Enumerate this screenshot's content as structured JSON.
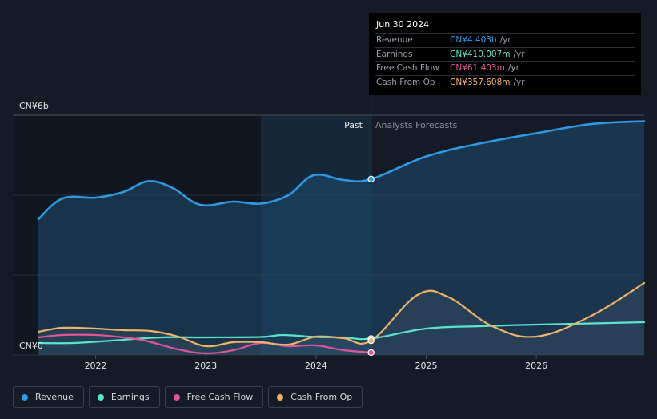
{
  "tooltip": {
    "date": "Jun 30 2024",
    "rows": [
      {
        "label": "Revenue",
        "value": "CN¥4.403b",
        "unit": "/yr",
        "color": "#2e9be6"
      },
      {
        "label": "Earnings",
        "value": "CN¥410.007m",
        "unit": "/yr",
        "color": "#5be3cc"
      },
      {
        "label": "Free Cash Flow",
        "value": "CN¥61.403m",
        "unit": "/yr",
        "color": "#e0559a"
      },
      {
        "label": "Cash From Op",
        "value": "CN¥357.608m",
        "unit": "/yr",
        "color": "#f0b36a"
      }
    ]
  },
  "legend": [
    {
      "label": "Revenue",
      "color": "#2e9be6"
    },
    {
      "label": "Earnings",
      "color": "#5be3cc"
    },
    {
      "label": "Free Cash Flow",
      "color": "#e0559a"
    },
    {
      "label": "Cash From Op",
      "color": "#f0b36a"
    }
  ],
  "chart_data": {
    "type": "line",
    "title": "",
    "ylabel": "",
    "y_top_label": "CN¥6b",
    "y_bottom_label": "CN¥0",
    "ylim": [
      0,
      6
    ],
    "xlim": [
      2021.48,
      2026.98
    ],
    "x_ticks": [
      {
        "value": 2022,
        "label": "2022"
      },
      {
        "value": 2023,
        "label": "2023"
      },
      {
        "value": 2024,
        "label": "2024"
      },
      {
        "value": 2025,
        "label": "2025"
      },
      {
        "value": 2026,
        "label": "2026"
      }
    ],
    "past_label": "Past",
    "forecast_label": "Analysts Forecasts",
    "past_end": 2024.5,
    "highlight_start": 2023.5,
    "marker_x": 2024.5,
    "series": [
      {
        "name": "Revenue",
        "color": "#2e9be6",
        "fill": true,
        "x": [
          2021.48,
          2021.7,
          2022.0,
          2022.25,
          2022.48,
          2022.7,
          2022.95,
          2023.25,
          2023.5,
          2023.75,
          2023.98,
          2024.25,
          2024.5,
          2025.0,
          2025.5,
          2026.0,
          2026.5,
          2026.98
        ],
        "y": [
          3.4,
          3.92,
          3.94,
          4.08,
          4.35,
          4.18,
          3.76,
          3.84,
          3.79,
          4.0,
          4.5,
          4.38,
          4.403,
          4.97,
          5.3,
          5.55,
          5.78,
          5.85
        ]
      },
      {
        "name": "Earnings",
        "color": "#5be3cc",
        "fill": false,
        "x": [
          2021.48,
          2021.8,
          2022.2,
          2022.6,
          2023.0,
          2023.5,
          2023.7,
          2024.0,
          2024.25,
          2024.5,
          2025.0,
          2025.5,
          2026.0,
          2026.5,
          2026.98
        ],
        "y": [
          0.3,
          0.3,
          0.37,
          0.44,
          0.44,
          0.45,
          0.5,
          0.45,
          0.44,
          0.41,
          0.66,
          0.72,
          0.76,
          0.79,
          0.82
        ]
      },
      {
        "name": "Free Cash Flow",
        "color": "#e0559a",
        "fill": false,
        "x": [
          2021.48,
          2021.7,
          2022.0,
          2022.25,
          2022.45,
          2022.75,
          2023.0,
          2023.25,
          2023.5,
          2023.75,
          2024.0,
          2024.25,
          2024.5
        ],
        "y": [
          0.44,
          0.5,
          0.5,
          0.44,
          0.36,
          0.14,
          0.04,
          0.12,
          0.3,
          0.22,
          0.24,
          0.12,
          0.061
        ]
      },
      {
        "name": "Cash From Op",
        "color": "#f0b36a",
        "fill": false,
        "x": [
          2021.48,
          2021.7,
          2022.0,
          2022.25,
          2022.5,
          2022.75,
          2023.0,
          2023.25,
          2023.5,
          2023.75,
          2024.0,
          2024.25,
          2024.5,
          2024.92,
          2025.2,
          2025.6,
          2026.0,
          2026.5,
          2026.98
        ],
        "y": [
          0.58,
          0.68,
          0.66,
          0.62,
          0.6,
          0.46,
          0.22,
          0.32,
          0.32,
          0.26,
          0.46,
          0.42,
          0.358,
          1.5,
          1.45,
          0.72,
          0.46,
          0.98,
          1.8
        ]
      }
    ]
  }
}
